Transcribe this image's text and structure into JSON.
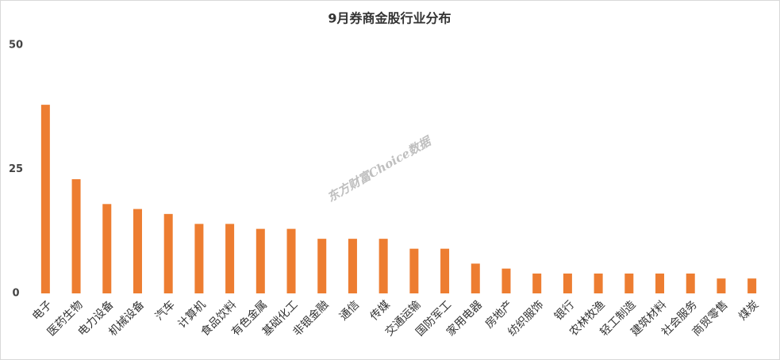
{
  "chart_data": {
    "type": "bar",
    "title": "9月券商金股行业分布",
    "watermark": "东方财富Choice数据",
    "categories": [
      "电子",
      "医药生物",
      "电力设备",
      "机械设备",
      "汽车",
      "计算机",
      "食品饮料",
      "有色金属",
      "基础化工",
      "非银金融",
      "通信",
      "传媒",
      "交通运输",
      "国防军工",
      "家用电器",
      "房地产",
      "纺织服饰",
      "银行",
      "农林牧渔",
      "轻工制造",
      "建筑材料",
      "社会服务",
      "商贸零售",
      "煤炭"
    ],
    "values": [
      38,
      23,
      18,
      17,
      16,
      14,
      14,
      13,
      13,
      11,
      11,
      11,
      9,
      9,
      6,
      5,
      4,
      4,
      4,
      4,
      4,
      4,
      3,
      3
    ],
    "color": "#ed7d31",
    "ylim": [
      0,
      50
    ],
    "yticks": [
      0,
      25,
      50
    ],
    "grid": false
  }
}
